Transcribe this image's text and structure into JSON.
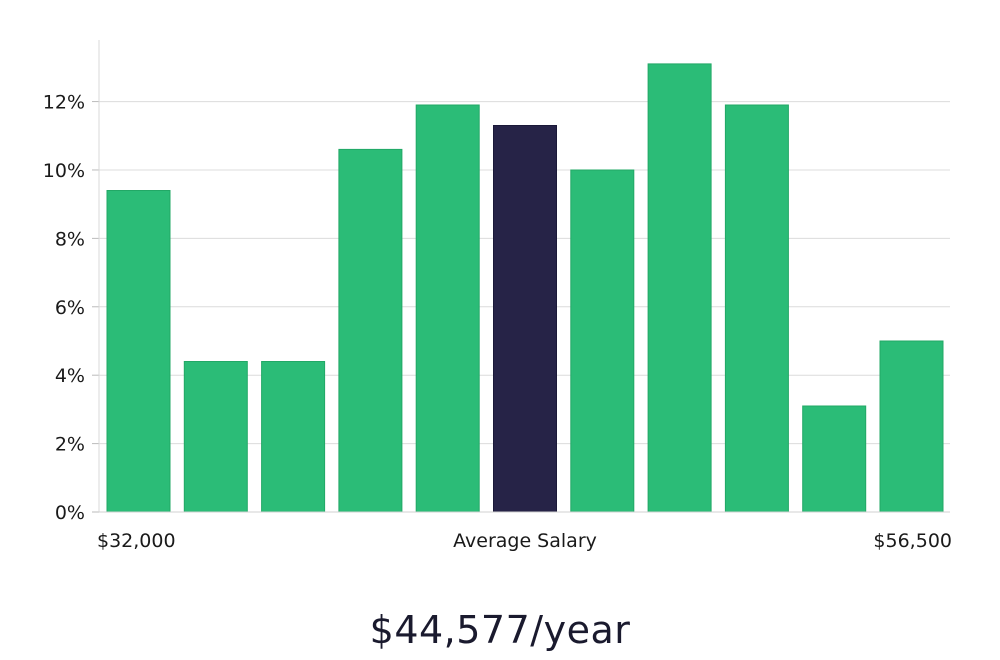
{
  "chart_data": {
    "type": "bar",
    "title": "",
    "xlabel": "Average Salary",
    "ylabel": "",
    "ylim": [
      0,
      13.8
    ],
    "y_ticks": [
      0,
      2,
      4,
      6,
      8,
      10,
      12
    ],
    "y_tick_suffix": "%",
    "range_min_label": "$32,000",
    "range_max_label": "$56,500",
    "values": [
      9.4,
      4.4,
      4.4,
      10.6,
      11.9,
      11.3,
      10.0,
      13.1,
      11.9,
      3.1,
      5.0
    ],
    "highlight_index": 5,
    "bar_color": "#2bbc77",
    "highlight_color": "#262347",
    "grid": true
  },
  "headline": {
    "salary": "$44,577/year"
  }
}
